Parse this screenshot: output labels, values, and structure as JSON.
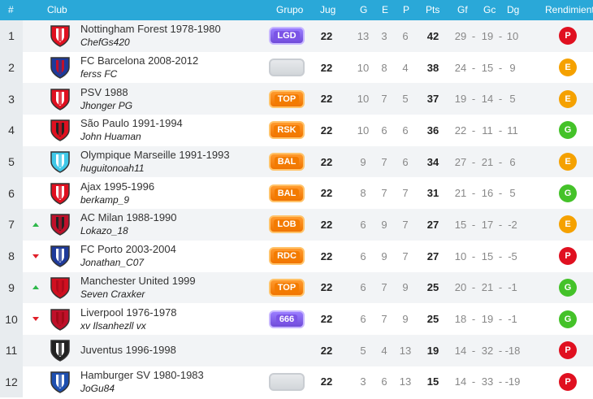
{
  "header": {
    "pos": "#",
    "club": "Club",
    "group": "Grupo",
    "played": "Jug",
    "won": "G",
    "drawn": "E",
    "lost": "P",
    "points": "Pts",
    "gf": "Gf",
    "gc": "Gc",
    "dg": "Dg",
    "rendimiento": "Rendimiento"
  },
  "colors": {
    "header_bg": "#2aa8d8",
    "up": "#2db84a",
    "down": "#e0202a"
  },
  "rows": [
    {
      "pos": "1",
      "trend": "",
      "club": "Nottingham Forest 1978-1980",
      "user": "ChefGs420",
      "group": "LGD",
      "group_style": "purple",
      "jug": "22",
      "g": "13",
      "e": "3",
      "p": "6",
      "pts": "42",
      "gf": "29",
      "gc": "19",
      "dg": "10",
      "rend": "P",
      "crest": [
        "#e01020",
        "#ffffff"
      ]
    },
    {
      "pos": "2",
      "trend": "",
      "club": "FC Barcelona 2008-2012",
      "user": "ferss FC",
      "group": "",
      "group_style": "gray",
      "jug": "22",
      "g": "10",
      "e": "8",
      "p": "4",
      "pts": "38",
      "gf": "24",
      "gc": "15",
      "dg": "9",
      "rend": "E",
      "crest": [
        "#1e3a9a",
        "#c0102a"
      ]
    },
    {
      "pos": "3",
      "trend": "",
      "club": "PSV 1988",
      "user": "Jhonger PG",
      "group": "TOP",
      "group_style": "orange",
      "jug": "22",
      "g": "10",
      "e": "7",
      "p": "5",
      "pts": "37",
      "gf": "19",
      "gc": "14",
      "dg": "5",
      "rend": "E",
      "crest": [
        "#e01020",
        "#ffffff"
      ]
    },
    {
      "pos": "4",
      "trend": "",
      "club": "São Paulo 1991-1994",
      "user": "John Huaman",
      "group": "RSK",
      "group_style": "orange",
      "jug": "22",
      "g": "10",
      "e": "6",
      "p": "6",
      "pts": "36",
      "gf": "22",
      "gc": "11",
      "dg": "11",
      "rend": "G",
      "crest": [
        "#e01020",
        "#222222"
      ]
    },
    {
      "pos": "5",
      "trend": "",
      "club": "Olympique Marseille 1991-1993",
      "user": "huguitonoah11",
      "group": "BAL",
      "group_style": "orange",
      "jug": "22",
      "g": "9",
      "e": "7",
      "p": "6",
      "pts": "34",
      "gf": "27",
      "gc": "21",
      "dg": "6",
      "rend": "E",
      "crest": [
        "#40c8e8",
        "#ffffff"
      ]
    },
    {
      "pos": "6",
      "trend": "",
      "club": "Ajax 1995-1996",
      "user": "berkamp_9",
      "group": "BAL",
      "group_style": "orange",
      "jug": "22",
      "g": "8",
      "e": "7",
      "p": "7",
      "pts": "31",
      "gf": "21",
      "gc": "16",
      "dg": "5",
      "rend": "G",
      "crest": [
        "#e01020",
        "#ffffff"
      ]
    },
    {
      "pos": "7",
      "trend": "up",
      "club": "AC Milan 1988-1990",
      "user": "Lokazo_18",
      "group": "LOB",
      "group_style": "orange",
      "jug": "22",
      "g": "6",
      "e": "9",
      "p": "7",
      "pts": "27",
      "gf": "15",
      "gc": "17",
      "dg": "-2",
      "rend": "E",
      "crest": [
        "#c0102a",
        "#222222"
      ]
    },
    {
      "pos": "8",
      "trend": "down",
      "club": "FC Porto 2003-2004",
      "user": "Jonathan_C07",
      "group": "RDC",
      "group_style": "orange",
      "jug": "22",
      "g": "6",
      "e": "9",
      "p": "7",
      "pts": "27",
      "gf": "10",
      "gc": "15",
      "dg": "-5",
      "rend": "P",
      "crest": [
        "#1e3a9a",
        "#ffffff"
      ]
    },
    {
      "pos": "9",
      "trend": "up",
      "club": "Manchester United 1999",
      "user": "Seven Craxker",
      "group": "TOP",
      "group_style": "orange",
      "jug": "22",
      "g": "6",
      "e": "7",
      "p": "9",
      "pts": "25",
      "gf": "20",
      "gc": "21",
      "dg": "-1",
      "rend": "G",
      "crest": [
        "#d01020",
        "#b00a1a"
      ]
    },
    {
      "pos": "10",
      "trend": "down",
      "club": "Liverpool 1976-1978",
      "user": "xv Ilsanhezll vx",
      "group": "666",
      "group_style": "purple",
      "jug": "22",
      "g": "6",
      "e": "7",
      "p": "9",
      "pts": "25",
      "gf": "18",
      "gc": "19",
      "dg": "-1",
      "rend": "G",
      "crest": [
        "#c0102a",
        "#a00a18"
      ]
    },
    {
      "pos": "11",
      "trend": "",
      "club": "Juventus 1996-1998",
      "user": "",
      "group": "",
      "group_style": "none",
      "jug": "22",
      "g": "5",
      "e": "4",
      "p": "13",
      "pts": "19",
      "gf": "14",
      "gc": "32",
      "dg": "-18",
      "rend": "P",
      "crest": [
        "#222222",
        "#ffffff"
      ]
    },
    {
      "pos": "12",
      "trend": "",
      "club": "Hamburger SV 1980-1983",
      "user": "JoGu84",
      "group": "",
      "group_style": "gray",
      "jug": "22",
      "g": "3",
      "e": "6",
      "p": "13",
      "pts": "15",
      "gf": "14",
      "gc": "33",
      "dg": "-19",
      "rend": "P",
      "crest": [
        "#1e4fb0",
        "#ffffff"
      ]
    }
  ]
}
